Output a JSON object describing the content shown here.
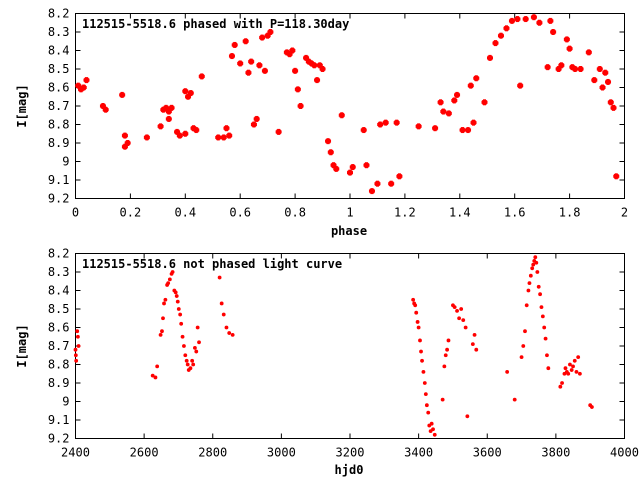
{
  "chart_data": [
    {
      "type": "scatter",
      "title": "112515-5518.6 phased with P=118.30day",
      "xlabel": "phase",
      "ylabel": "I[mag]",
      "xlim": [
        0,
        2
      ],
      "ylim": [
        8.2,
        9.2
      ],
      "y_inverted": true,
      "x_ticks": [
        "0",
        "0.2",
        "0.4",
        "0.6",
        "0.8",
        "1",
        "1.2",
        "1.4",
        "1.6",
        "1.8",
        "2"
      ],
      "y_ticks": [
        "8.2",
        "8.3",
        "8.4",
        "8.5",
        "8.6",
        "8.7",
        "8.8",
        "8.9",
        "9",
        "9.1",
        "9.2"
      ],
      "marker": "star",
      "color": "#ff0000",
      "series": [
        {
          "x": [
            0.01,
            0.02,
            0.03,
            0.04,
            0.1,
            0.11,
            0.17,
            0.18,
            0.18,
            0.19,
            0.26,
            0.31,
            0.32,
            0.33,
            0.34,
            0.34,
            0.35,
            0.37,
            0.38,
            0.4,
            0.4,
            0.41,
            0.42,
            0.43,
            0.44,
            0.46,
            0.52,
            0.54,
            0.55,
            0.56,
            0.57,
            0.58,
            0.6,
            0.62,
            0.63,
            0.64,
            0.65,
            0.66,
            0.67,
            0.68,
            0.69,
            0.7,
            0.71,
            0.74,
            0.77,
            0.78,
            0.79,
            0.8,
            0.81,
            0.82,
            0.84,
            0.85,
            0.86,
            0.87,
            0.88,
            0.89,
            0.9,
            0.92,
            0.93,
            0.94,
            0.95,
            0.97,
            1.0,
            1.01,
            1.05,
            1.06,
            1.08,
            1.1,
            1.11,
            1.13,
            1.15,
            1.17,
            1.18,
            1.25,
            1.31,
            1.33,
            1.34,
            1.36,
            1.38,
            1.39,
            1.41,
            1.43,
            1.44,
            1.45,
            1.46,
            1.49,
            1.51,
            1.53,
            1.55,
            1.57,
            1.59,
            1.61,
            1.62,
            1.64,
            1.67,
            1.69,
            1.72,
            1.73,
            1.74,
            1.76,
            1.77,
            1.79,
            1.8,
            1.81,
            1.82,
            1.84,
            1.87,
            1.89,
            1.91,
            1.92,
            1.93,
            1.94,
            1.95,
            1.96,
            1.97
          ],
          "y": [
            8.59,
            8.61,
            8.6,
            8.56,
            8.7,
            8.72,
            8.64,
            8.86,
            8.92,
            8.9,
            8.87,
            8.81,
            8.72,
            8.71,
            8.77,
            8.73,
            8.71,
            8.84,
            8.86,
            8.85,
            8.62,
            8.65,
            8.63,
            8.82,
            8.83,
            8.54,
            8.87,
            8.87,
            8.82,
            8.86,
            8.43,
            8.37,
            8.47,
            8.35,
            8.52,
            8.46,
            8.8,
            8.77,
            8.48,
            8.33,
            8.51,
            8.32,
            8.3,
            8.84,
            8.41,
            8.42,
            8.4,
            8.51,
            8.61,
            8.7,
            8.44,
            8.46,
            8.47,
            8.48,
            8.56,
            8.48,
            8.5,
            8.89,
            8.95,
            9.02,
            9.04,
            8.75,
            9.06,
            9.03,
            8.83,
            9.02,
            9.16,
            9.12,
            8.8,
            8.79,
            9.12,
            8.79,
            9.08,
            8.81,
            8.82,
            8.68,
            8.73,
            8.74,
            8.67,
            8.64,
            8.83,
            8.83,
            8.59,
            8.79,
            8.55,
            8.68,
            8.44,
            8.36,
            8.32,
            8.28,
            8.24,
            8.23,
            8.59,
            8.23,
            8.22,
            8.25,
            8.49,
            8.24,
            8.3,
            8.5,
            8.48,
            8.34,
            8.39,
            8.49,
            8.5,
            8.5,
            8.41,
            8.56,
            8.5,
            8.6,
            8.52,
            8.57,
            8.68,
            8.71,
            9.08
          ]
        }
      ]
    },
    {
      "type": "scatter",
      "title": "112515-5518.6 not phased light curve",
      "xlabel": "hjd0",
      "ylabel": "I[mag]",
      "xlim": [
        2400,
        4000
      ],
      "ylim": [
        8.2,
        9.2
      ],
      "y_inverted": true,
      "x_ticks": [
        "2400",
        "2600",
        "2800",
        "3000",
        "3200",
        "3400",
        "3600",
        "3800",
        "4000"
      ],
      "y_ticks": [
        "8.2",
        "8.3",
        "8.4",
        "8.5",
        "8.6",
        "8.7",
        "8.8",
        "8.9",
        "9",
        "9.1",
        "9.2"
      ],
      "marker": "dot",
      "color": "#ff0000",
      "series": [
        {
          "x": [
            2400,
            2401,
            2402,
            2405,
            2407,
            2409,
            2625,
            2633,
            2638,
            2648,
            2652,
            2655,
            2658,
            2662,
            2667,
            2670,
            2675,
            2680,
            2683,
            2688,
            2692,
            2695,
            2698,
            2701,
            2705,
            2708,
            2712,
            2716,
            2720,
            2724,
            2727,
            2730,
            2735,
            2740,
            2743,
            2748,
            2752,
            2756,
            2760,
            2820,
            2826,
            2832,
            2840,
            2848,
            2858,
            3384,
            3387,
            3390,
            3393,
            3397,
            3400,
            3404,
            3407,
            3410,
            3414,
            3418,
            3421,
            3424,
            3428,
            3431,
            3435,
            3438,
            3442,
            3447,
            3470,
            3475,
            3479,
            3483,
            3487,
            3500,
            3505,
            3512,
            3518,
            3524,
            3530,
            3537,
            3542,
            3558,
            3563,
            3568,
            3658,
            3680,
            3700,
            3705,
            3710,
            3715,
            3720,
            3723,
            3727,
            3731,
            3734,
            3737,
            3740,
            3743,
            3746,
            3750,
            3754,
            3758,
            3762,
            3766,
            3770,
            3774,
            3778,
            3813,
            3818,
            3825,
            3828,
            3832,
            3836,
            3841,
            3846,
            3850,
            3855,
            3860,
            3865,
            3870,
            3900,
            3905
          ],
          "y": [
            8.72,
            8.75,
            8.78,
            8.62,
            8.65,
            8.7,
            8.86,
            8.87,
            8.81,
            8.64,
            8.62,
            8.55,
            8.47,
            8.45,
            8.37,
            8.36,
            8.34,
            8.31,
            8.3,
            8.4,
            8.41,
            8.43,
            8.46,
            8.5,
            8.53,
            8.58,
            8.65,
            8.7,
            8.75,
            8.78,
            8.8,
            8.83,
            8.82,
            8.78,
            8.8,
            8.71,
            8.73,
            8.6,
            8.68,
            8.33,
            8.47,
            8.53,
            8.6,
            8.63,
            8.64,
            8.45,
            8.47,
            8.48,
            8.52,
            8.57,
            8.6,
            8.67,
            8.73,
            8.78,
            8.84,
            8.9,
            8.96,
            9.02,
            9.06,
            9.13,
            9.16,
            9.12,
            9.15,
            9.18,
            8.99,
            8.81,
            8.75,
            8.72,
            8.67,
            8.48,
            8.49,
            8.51,
            8.55,
            8.5,
            8.56,
            8.6,
            9.08,
            8.69,
            8.64,
            8.72,
            8.84,
            8.99,
            8.76,
            8.7,
            8.62,
            8.48,
            8.4,
            8.36,
            8.32,
            8.28,
            8.26,
            8.24,
            8.22,
            8.25,
            8.3,
            8.38,
            8.42,
            8.49,
            8.54,
            8.6,
            8.66,
            8.75,
            8.82,
            8.92,
            8.9,
            8.85,
            8.82,
            8.84,
            8.85,
            8.8,
            8.83,
            8.81,
            8.78,
            8.84,
            8.76,
            8.85,
            9.02,
            9.03
          ]
        }
      ]
    }
  ]
}
